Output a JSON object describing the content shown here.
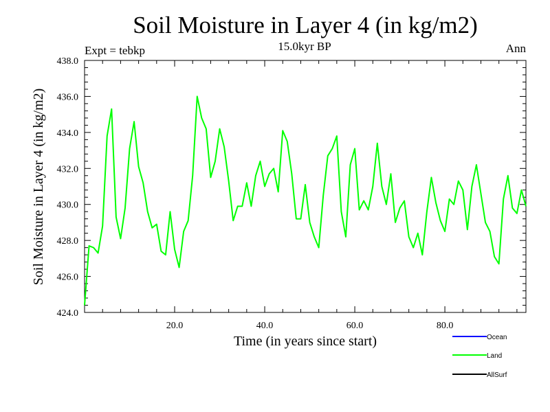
{
  "chart_data": {
    "type": "line",
    "title": "Soil Moisture in Layer 4 (in kg/m2)",
    "subtitle": "15.0kyr BP",
    "left_note": "Expt = tebkp",
    "right_note": "Ann",
    "xlabel": "Time (in years since start)",
    "ylabel": "Soil Moisture in Layer 4 (in kg/m2)",
    "xlim": [
      0,
      98
    ],
    "ylim": [
      424,
      438
    ],
    "x_ticks": [
      20,
      40,
      60,
      80
    ],
    "x_tick_labels": [
      "20.0",
      "40.0",
      "60.0",
      "80.0"
    ],
    "y_ticks": [
      424,
      426,
      428,
      430,
      432,
      434,
      436,
      438
    ],
    "y_tick_labels": [
      "424.0",
      "426.0",
      "428.0",
      "430.0",
      "432.0",
      "434.0",
      "436.0",
      "438.0"
    ],
    "legend": [
      {
        "name": "Ocean",
        "color": "#0000ff"
      },
      {
        "name": "Land",
        "color": "#00ff00"
      },
      {
        "name": "AllSurf",
        "color": "#000000"
      }
    ],
    "series": [
      {
        "name": "Land",
        "color": "#00ff00",
        "x": [
          0,
          1,
          2,
          3,
          4,
          5,
          6,
          7,
          8,
          9,
          10,
          11,
          12,
          13,
          14,
          15,
          16,
          17,
          18,
          19,
          20,
          21,
          22,
          23,
          24,
          25,
          26,
          27,
          28,
          29,
          30,
          31,
          32,
          33,
          34,
          35,
          36,
          37,
          38,
          39,
          40,
          41,
          42,
          43,
          44,
          45,
          46,
          47,
          48,
          49,
          50,
          51,
          52,
          53,
          54,
          55,
          56,
          57,
          58,
          59,
          60,
          61,
          62,
          63,
          64,
          65,
          66,
          67,
          68,
          69,
          70,
          71,
          72,
          73,
          74,
          75,
          76,
          77,
          78,
          79,
          80,
          81,
          82,
          83,
          84,
          85,
          86,
          87,
          88,
          89,
          90,
          91,
          92,
          93,
          94,
          95,
          96,
          97,
          98
        ],
        "values": [
          424.4,
          427.7,
          427.6,
          427.3,
          428.8,
          433.8,
          435.3,
          429.3,
          428.1,
          429.8,
          433.1,
          434.6,
          432.1,
          431.2,
          429.6,
          428.7,
          428.9,
          427.4,
          427.2,
          429.6,
          427.5,
          426.5,
          428.5,
          429.1,
          431.6,
          436.0,
          434.8,
          434.2,
          431.5,
          432.4,
          434.2,
          433.2,
          431.3,
          429.1,
          429.9,
          429.9,
          431.2,
          429.9,
          431.6,
          432.4,
          431.0,
          431.7,
          432.0,
          430.7,
          434.1,
          433.5,
          431.7,
          429.2,
          429.2,
          431.1,
          429.0,
          428.2,
          427.6,
          430.5,
          432.7,
          433.1,
          433.8,
          429.6,
          428.2,
          432.2,
          433.1,
          429.7,
          430.2,
          429.7,
          431.0,
          433.4,
          431.0,
          430.0,
          431.7,
          429.0,
          429.8,
          430.2,
          428.2,
          427.6,
          428.4,
          427.2,
          429.6,
          431.5,
          430.1,
          429.1,
          428.5,
          430.3,
          430.0,
          431.3,
          430.8,
          428.6,
          431.0,
          432.2,
          430.6,
          429.0,
          428.5,
          427.1,
          426.7,
          430.3,
          431.6,
          429.8,
          429.5,
          430.8,
          429.9
        ]
      }
    ]
  }
}
